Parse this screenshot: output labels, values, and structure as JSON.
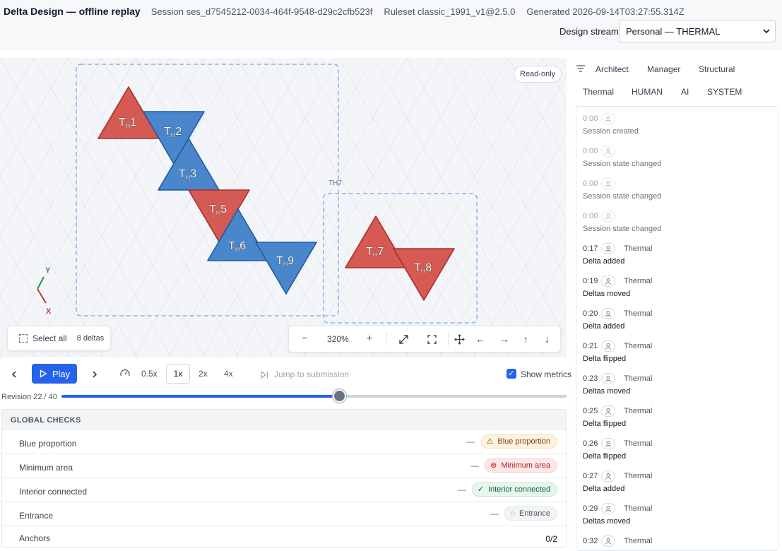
{
  "header": {
    "app_title": "Delta Design — offline replay",
    "session": "Session ses_d7545212-0034-464f-9548-d29c2cfb523f",
    "ruleset": "Ruleset classic_1991_v1@2.5.0",
    "generated": "Generated 2026-09-14T03:27:55.314Z",
    "stream_label": "Design stream",
    "stream_value": "Personal — THERMAL"
  },
  "canvas": {
    "readonly_badge": "Read-only",
    "group_label": "TH7",
    "axis_x": "X",
    "axis_y": "Y",
    "deltas": [
      {
        "label": "T",
        "sub": "H",
        "num": "1",
        "color": "red"
      },
      {
        "label": "T",
        "sub": "H",
        "num": "2",
        "color": "blue"
      },
      {
        "label": "T",
        "sub": "H",
        "num": "3",
        "color": "blue"
      },
      {
        "label": "T",
        "sub": "H",
        "num": "5",
        "color": "red"
      },
      {
        "label": "T",
        "sub": "H",
        "num": "6",
        "color": "blue"
      },
      {
        "label": "T",
        "sub": "H",
        "num": "9",
        "color": "blue"
      },
      {
        "label": "T",
        "sub": "H",
        "num": "7",
        "color": "red"
      },
      {
        "label": "T",
        "sub": "H",
        "num": "8",
        "color": "red"
      }
    ],
    "colors": {
      "red": "#d45a53",
      "red_stroke": "#a8302a",
      "blue": "#4a86cc",
      "blue_stroke": "#1f5aa6"
    },
    "select_all": "Select all",
    "delta_count": "8 deltas",
    "zoom_level": "320%"
  },
  "playback": {
    "play_label": "Play",
    "speeds": [
      "0.5x",
      "1x",
      "2x",
      "4x"
    ],
    "active_speed": "1x",
    "jump_label": "Jump to submission",
    "show_metrics_label": "Show metrics",
    "show_metrics": true,
    "revision_label": "Revision 22 / 40",
    "revision_current": 22,
    "revision_total": 40
  },
  "checks": {
    "title": "GLOBAL CHECKS",
    "rows": [
      {
        "name": "Blue proportion",
        "value": "—",
        "badge": "Blue proportion",
        "status": "warn"
      },
      {
        "name": "Minimum area",
        "value": "—",
        "badge": "Minimum area",
        "status": "error"
      },
      {
        "name": "Interior connected",
        "value": "—",
        "badge": "Interior connected",
        "status": "ok"
      },
      {
        "name": "Entrance",
        "value": "—",
        "badge": "Entrance",
        "status": "neutral"
      }
    ],
    "anchors_label": "Anchors",
    "anchors_value": "0/2"
  },
  "filters": {
    "row1": [
      "Architect",
      "Manager",
      "Structural"
    ],
    "row2": [
      "Thermal",
      "HUMAN",
      "AI",
      "SYSTEM"
    ]
  },
  "events": [
    {
      "time": "0:00",
      "actor": "",
      "message": "Session created",
      "system": true
    },
    {
      "time": "0:00",
      "actor": "",
      "message": "Session state changed",
      "system": true
    },
    {
      "time": "0:00",
      "actor": "",
      "message": "Session state changed",
      "system": true
    },
    {
      "time": "0:00",
      "actor": "",
      "message": "Session state changed",
      "system": true
    },
    {
      "time": "0:17",
      "actor": "Thermal",
      "message": "Delta added",
      "system": false
    },
    {
      "time": "0:19",
      "actor": "Thermal",
      "message": "Deltas moved",
      "system": false
    },
    {
      "time": "0:20",
      "actor": "Thermal",
      "message": "Delta added",
      "system": false
    },
    {
      "time": "0:21",
      "actor": "Thermal",
      "message": "Delta flipped",
      "system": false
    },
    {
      "time": "0:23",
      "actor": "Thermal",
      "message": "Deltas moved",
      "system": false
    },
    {
      "time": "0:25",
      "actor": "Thermal",
      "message": "Delta flipped",
      "system": false
    },
    {
      "time": "0:26",
      "actor": "Thermal",
      "message": "Delta flipped",
      "system": false
    },
    {
      "time": "0:27",
      "actor": "Thermal",
      "message": "Delta added",
      "system": false
    },
    {
      "time": "0:29",
      "actor": "Thermal",
      "message": "Deltas moved",
      "system": false
    },
    {
      "time": "0:32",
      "actor": "Thermal",
      "message": "",
      "system": false
    }
  ]
}
